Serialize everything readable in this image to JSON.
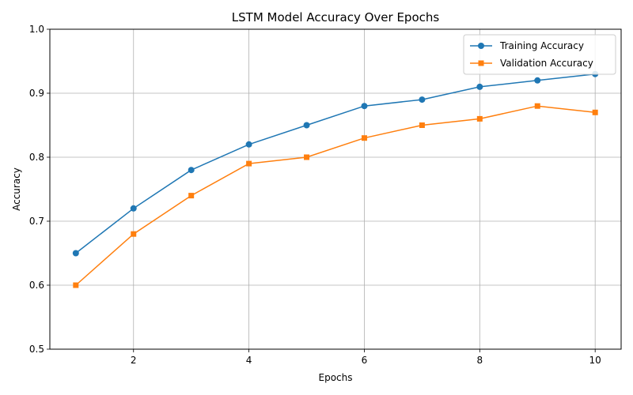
{
  "chart_data": {
    "type": "line",
    "title": "LSTM Model Accuracy Over Epochs",
    "xlabel": "Epochs",
    "ylabel": "Accuracy",
    "x": [
      1,
      2,
      3,
      4,
      5,
      6,
      7,
      8,
      9,
      10
    ],
    "series": [
      {
        "name": "Training Accuracy",
        "values": [
          0.65,
          0.72,
          0.78,
          0.82,
          0.85,
          0.88,
          0.89,
          0.91,
          0.92,
          0.93
        ],
        "color": "#1f77b4",
        "marker": "circle"
      },
      {
        "name": "Validation Accuracy",
        "values": [
          0.6,
          0.68,
          0.74,
          0.79,
          0.8,
          0.83,
          0.85,
          0.86,
          0.88,
          0.87
        ],
        "color": "#ff7f0e",
        "marker": "square"
      }
    ],
    "xlim": [
      0.55,
      10.45
    ],
    "ylim": [
      0.5,
      1.0
    ],
    "xticks": [
      2,
      4,
      6,
      8,
      10
    ],
    "yticks": [
      0.5,
      0.6,
      0.7,
      0.8,
      0.9,
      1.0
    ],
    "xtick_labels": [
      "2",
      "4",
      "6",
      "8",
      "10"
    ],
    "ytick_labels": [
      "0.5",
      "0.6",
      "0.7",
      "0.8",
      "0.9",
      "1.0"
    ],
    "grid": true,
    "legend_position": "top-right"
  }
}
